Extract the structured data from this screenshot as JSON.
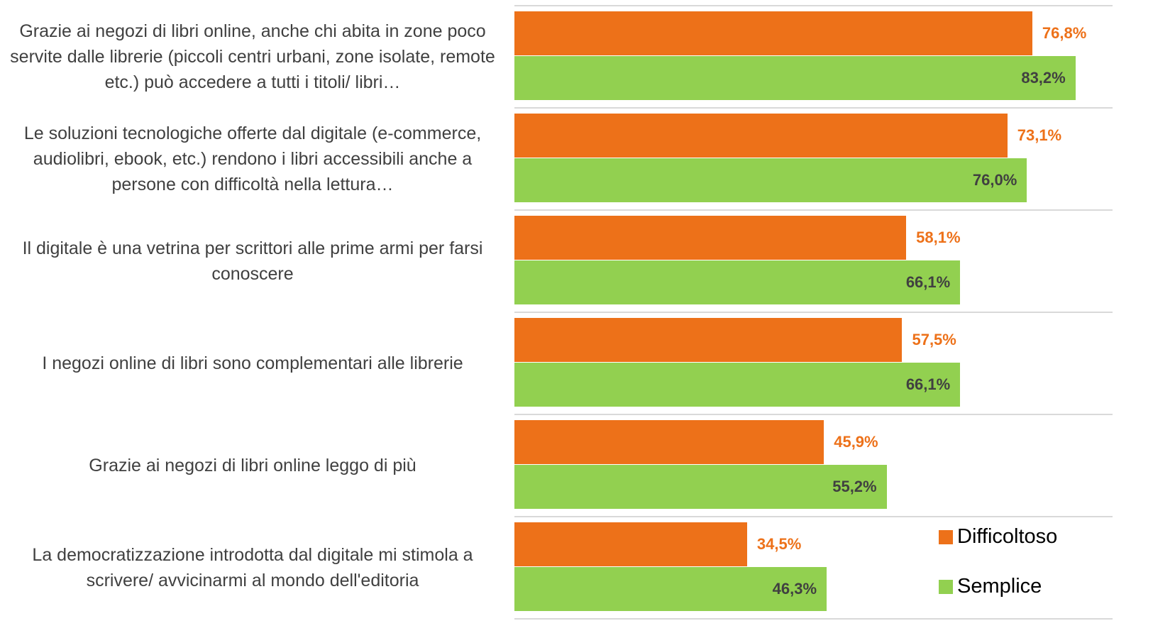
{
  "chart_data": {
    "type": "bar",
    "orientation": "horizontal",
    "categories": [
      "Grazie ai negozi di libri online, anche chi abita in zone poco servite dalle librerie (piccoli centri urbani, zone isolate, remote etc.) può accedere a tutti i titoli/ libri…",
      "Le soluzioni tecnologiche offerte dal digitale (e-commerce, audiolibri, ebook, etc.) rendono i libri accessibili anche a persone con difficoltà nella lettura…",
      "Il digitale è una vetrina per scrittori alle prime armi per farsi conoscere",
      "I negozi online di libri sono complementari alle librerie",
      "Grazie ai negozi di libri online leggo di più",
      "La democratizzazione introdotta dal digitale mi stimola a scrivere/ avvicinarmi al mondo dell'editoria"
    ],
    "series": [
      {
        "name": "Difficoltoso",
        "color": "#ed7119",
        "label_color": "#ed7119",
        "values": [
          76.8,
          73.1,
          58.1,
          57.5,
          45.9,
          34.5
        ],
        "value_labels": [
          "76,8%",
          "73,1%",
          "58,1%",
          "57,5%",
          "45,9%",
          "34,5%"
        ]
      },
      {
        "name": "Semplice",
        "color": "#92d050",
        "label_color": "#404040",
        "values": [
          83.2,
          76.0,
          66.1,
          66.1,
          55.2,
          46.3
        ],
        "value_labels": [
          "83,2%",
          "76,0%",
          "66,1%",
          "66,1%",
          "55,2%",
          "46,3%"
        ]
      }
    ],
    "xlim": [
      0,
      88.7
    ],
    "legend": "bottom-right"
  }
}
